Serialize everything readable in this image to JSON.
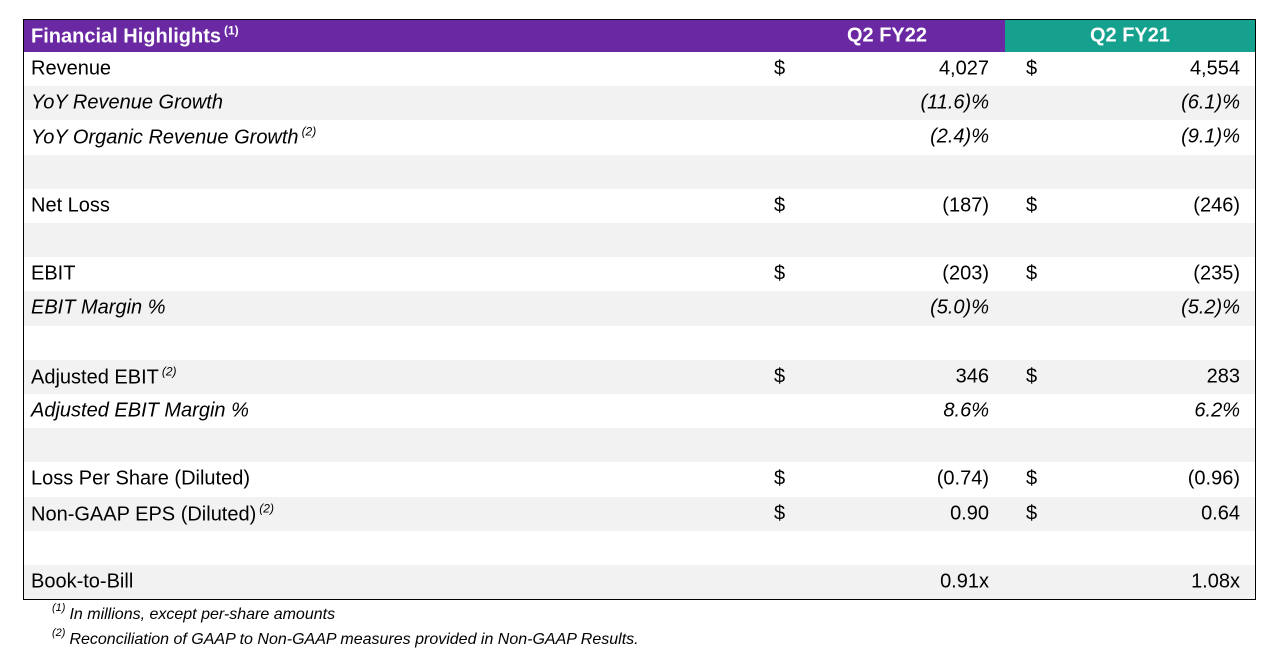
{
  "header": {
    "title": "Financial Highlights",
    "title_note": "(1)",
    "columns": [
      "Q2 FY22",
      "Q2 FY21"
    ],
    "title_color": "#6a28a3",
    "column_colors": [
      "#6a28a3",
      "#16a08e"
    ]
  },
  "groups": [
    {
      "rows": [
        {
          "label": "Revenue",
          "cells": [
            {
              "currency": "$",
              "value": "4,027"
            },
            {
              "currency": "$",
              "value": "4,554"
            }
          ]
        },
        {
          "label": "YoY Revenue Growth",
          "italic": true,
          "cells": [
            {
              "value": "(11.6)%"
            },
            {
              "value": "(6.1)%"
            }
          ]
        },
        {
          "label": "YoY Organic Revenue Growth",
          "note": "(2)",
          "italic": true,
          "cells": [
            {
              "value": "(2.4)%"
            },
            {
              "value": "(9.1)%"
            }
          ]
        }
      ]
    },
    {
      "rows": [
        {
          "label": "Net Loss",
          "cells": [
            {
              "currency": "$",
              "value": "(187)"
            },
            {
              "currency": "$",
              "value": "(246)"
            }
          ]
        }
      ]
    },
    {
      "rows": [
        {
          "label": "EBIT",
          "cells": [
            {
              "currency": "$",
              "value": "(203)"
            },
            {
              "currency": "$",
              "value": "(235)"
            }
          ]
        },
        {
          "label": "EBIT Margin %",
          "italic": true,
          "cells": [
            {
              "value": "(5.0)%"
            },
            {
              "value": "(5.2)%"
            }
          ]
        }
      ]
    },
    {
      "rows": [
        {
          "label": "Adjusted EBIT",
          "note": "(2)",
          "cells": [
            {
              "currency": "$",
              "value": "346"
            },
            {
              "currency": "$",
              "value": "283"
            }
          ]
        },
        {
          "label": "Adjusted EBIT Margin %",
          "italic": true,
          "cells": [
            {
              "value": "8.6%"
            },
            {
              "value": "6.2%"
            }
          ]
        }
      ]
    },
    {
      "rows": [
        {
          "label": "Loss Per Share (Diluted)",
          "cells": [
            {
              "currency": "$",
              "value": "(0.74)"
            },
            {
              "currency": "$",
              "value": "(0.96)"
            }
          ]
        },
        {
          "label": "Non-GAAP EPS (Diluted)",
          "note": "(2)",
          "cells": [
            {
              "currency": "$",
              "value": "0.90"
            },
            {
              "currency": "$",
              "value": "0.64"
            }
          ]
        }
      ]
    },
    {
      "rows": [
        {
          "label": "Book-to-Bill",
          "cells": [
            {
              "value": "0.91x"
            },
            {
              "value": "1.08x"
            }
          ]
        }
      ]
    }
  ],
  "footnotes": [
    {
      "mark": "(1)",
      "text": "In millions, except per-share amounts"
    },
    {
      "mark": "(2)",
      "text": "Reconciliation of GAAP to Non-GAAP measures provided in Non-GAAP Results."
    }
  ]
}
